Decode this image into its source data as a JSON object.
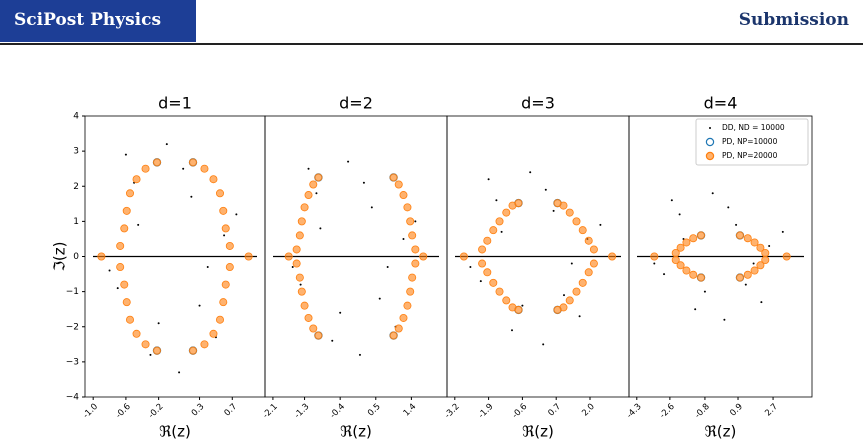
{
  "header": {
    "journal": "SciPost Physics",
    "tag": "Submission"
  },
  "chart_data": [
    {
      "type": "scatter",
      "title": "d=1",
      "x_label": "ℜ(z)",
      "y_label": "ℑ(z)",
      "xlim": [
        -1.1,
        1.1
      ],
      "ylim": [
        -4,
        4
      ],
      "xticks": [
        {
          "value": -1.0,
          "label": "-1.0"
        },
        -0.6,
        -0.2,
        0.3,
        0.7
      ],
      "yticks": [
        {
          "value": -4,
          "label": "−4"
        },
        {
          "value": -3,
          "label": "−3"
        },
        {
          "value": -2,
          "label": "−2"
        },
        {
          "value": -1,
          "label": "−1"
        },
        0,
        1,
        2,
        3,
        4
      ],
      "series": [
        {
          "color": "#000000",
          "x": [
            -0.5,
            0.3,
            -0.1,
            0.6,
            -0.7,
            0.2,
            -0.3,
            0.4,
            0.05,
            -0.45,
            0.75,
            -0.8,
            0.1,
            -0.2,
            0.5,
            -0.6
          ],
          "y": [
            2.1,
            -1.4,
            3.2,
            0.6,
            -0.9,
            1.7,
            -2.8,
            -0.3,
            -3.3,
            0.9,
            1.2,
            -0.4,
            2.5,
            -1.9,
            -2.3,
            2.9
          ]
        },
        {
          "color": "#1f77b4",
          "x": [
            0.22,
            -0.22,
            0.22,
            -0.22
          ],
          "y": [
            2.68,
            2.68,
            -2.68,
            -2.68
          ]
        },
        {
          "color": "#ff7f0e",
          "x": [
            -0.9,
            0.9,
            0.67,
            0.62,
            0.59,
            0.55,
            0.47,
            0.36,
            0.22,
            -0.67,
            -0.62,
            -0.59,
            -0.55,
            -0.47,
            -0.36,
            -0.22,
            0.67,
            0.62,
            0.59,
            0.55,
            0.47,
            0.36,
            0.22,
            -0.67,
            -0.62,
            -0.59,
            -0.55,
            -0.47,
            -0.36,
            -0.22
          ],
          "y": [
            0,
            0,
            0.3,
            0.8,
            1.3,
            1.8,
            2.2,
            2.5,
            2.68,
            0.3,
            0.8,
            1.3,
            1.8,
            2.2,
            2.5,
            2.68,
            -0.3,
            -0.8,
            -1.3,
            -1.8,
            -2.2,
            -2.5,
            -2.68,
            -0.3,
            -0.8,
            -1.3,
            -1.8,
            -2.2,
            -2.5,
            -2.68
          ]
        }
      ]
    },
    {
      "type": "scatter",
      "title": "d=2",
      "x_label": "ℜ(z)",
      "xlim": [
        -2.3,
        2.3
      ],
      "ylim": [
        -4,
        4
      ],
      "xticks": [
        -2.1,
        -1.3,
        -0.4,
        0.5,
        1.4
      ],
      "series": [
        {
          "color": "#000000",
          "x": [
            -1.0,
            0.6,
            -0.2,
            1.2,
            -1.4,
            0.4,
            -0.6,
            0.8,
            0.1,
            -0.9,
            1.5,
            -1.6,
            0.2,
            -0.4,
            1.0,
            -1.2
          ],
          "y": [
            1.8,
            -1.2,
            2.7,
            0.5,
            -0.8,
            1.4,
            -2.4,
            -0.3,
            -2.8,
            0.8,
            1.0,
            -0.3,
            2.1,
            -1.6,
            -2.0,
            2.5
          ]
        },
        {
          "color": "#1f77b4",
          "x": [
            0.95,
            -0.95,
            0.95,
            -0.95
          ],
          "y": [
            2.25,
            2.25,
            -2.25,
            -2.25
          ]
        },
        {
          "color": "#ff7f0e",
          "x": [
            -1.7,
            1.7,
            1.5,
            1.42,
            1.37,
            1.3,
            1.2,
            1.08,
            0.95,
            -1.5,
            -1.42,
            -1.37,
            -1.3,
            -1.2,
            -1.08,
            -0.95,
            1.5,
            1.42,
            1.37,
            1.3,
            1.2,
            1.08,
            0.95,
            -1.5,
            -1.42,
            -1.37,
            -1.3,
            -1.2,
            -1.08,
            -0.95
          ],
          "y": [
            0,
            0,
            0.2,
            0.6,
            1.0,
            1.4,
            1.75,
            2.05,
            2.25,
            0.2,
            0.6,
            1.0,
            1.4,
            1.75,
            2.05,
            2.25,
            -0.2,
            -0.6,
            -1.0,
            -1.4,
            -1.75,
            -2.05,
            -2.25,
            -0.2,
            -0.6,
            -1.0,
            -1.4,
            -1.75,
            -2.05,
            -2.25
          ]
        }
      ]
    },
    {
      "type": "scatter",
      "title": "d=3",
      "x_label": "ℜ(z)",
      "xlim": [
        -3.5,
        3.5
      ],
      "ylim": [
        -4,
        4
      ],
      "xticks": [
        -3.2,
        -1.9,
        -0.6,
        0.7,
        {
          "value": 2.0,
          "label": "2.0"
        }
      ],
      "series": [
        {
          "color": "#000000",
          "x": [
            -1.6,
            1.0,
            -0.3,
            1.9,
            -2.2,
            0.6,
            -1.0,
            1.3,
            0.2,
            -1.4,
            2.4,
            -2.6,
            0.3,
            -0.6,
            1.6,
            -1.9
          ],
          "y": [
            1.6,
            -1.1,
            2.4,
            0.5,
            -0.7,
            1.3,
            -2.1,
            -0.2,
            -2.5,
            0.7,
            0.9,
            -0.3,
            1.9,
            -1.4,
            -1.7,
            2.2
          ]
        },
        {
          "color": "#1f77b4",
          "x": [
            0.75,
            -0.75,
            0.75,
            -0.75
          ],
          "y": [
            1.52,
            1.52,
            -1.52,
            -1.52
          ]
        },
        {
          "color": "#ff7f0e",
          "x": [
            -2.85,
            2.85,
            2.15,
            1.95,
            1.72,
            1.48,
            1.22,
            0.98,
            0.75,
            -2.15,
            -1.95,
            -1.72,
            -1.48,
            -1.22,
            -0.98,
            -0.75,
            2.15,
            1.95,
            1.72,
            1.48,
            1.22,
            0.98,
            0.75,
            -2.15,
            -1.95,
            -1.72,
            -1.48,
            -1.22,
            -0.98,
            -0.75
          ],
          "y": [
            0,
            0,
            0.2,
            0.45,
            0.75,
            1.0,
            1.25,
            1.45,
            1.52,
            0.2,
            0.45,
            0.75,
            1.0,
            1.25,
            1.45,
            1.52,
            -0.2,
            -0.45,
            -0.75,
            -1.0,
            -1.25,
            -1.45,
            -1.52,
            -0.2,
            -0.45,
            -0.75,
            -1.0,
            -1.25,
            -1.45,
            -1.52
          ]
        }
      ]
    },
    {
      "type": "scatter",
      "title": "d=4",
      "x_label": "ℜ(z)",
      "xlim": [
        -4.7,
        4.7
      ],
      "ylim": [
        -4,
        4
      ],
      "xticks": [
        -4.3,
        -2.6,
        -0.8,
        0.9,
        2.7
      ],
      "legend": "upper right",
      "series": [
        {
          "name": "DD, ND = 10000",
          "color": "#000000",
          "x": [
            -2.1,
            1.3,
            -0.4,
            2.5,
            -2.9,
            0.8,
            -1.3,
            1.7,
            0.2,
            -1.9,
            3.2,
            -3.4,
            0.4,
            -0.8,
            2.1,
            -2.5
          ],
          "y": [
            1.2,
            -0.8,
            1.8,
            0.3,
            -0.5,
            0.9,
            -1.5,
            -0.2,
            -1.8,
            0.5,
            0.7,
            -0.2,
            1.4,
            -1.0,
            -1.3,
            1.6
          ]
        },
        {
          "name": "PD, NP=10000",
          "color": "#1f77b4",
          "x": [
            1.0,
            -1.0,
            1.0,
            -1.0
          ],
          "y": [
            0.6,
            0.6,
            -0.6,
            -0.6
          ]
        },
        {
          "name": "PD, NP=20000",
          "color": "#ff7f0e",
          "x": [
            -3.4,
            3.4,
            2.3,
            2.05,
            1.75,
            1.4,
            1.0,
            -2.3,
            -2.05,
            -1.75,
            -1.4,
            -1.0,
            2.3,
            2.05,
            1.75,
            1.4,
            1.0,
            -2.3,
            -2.05,
            -1.75,
            -1.4,
            -1.0
          ],
          "y": [
            0,
            0,
            0.1,
            0.25,
            0.4,
            0.52,
            0.6,
            0.1,
            0.25,
            0.4,
            0.52,
            0.6,
            -0.1,
            -0.25,
            -0.4,
            -0.52,
            -0.6,
            -0.1,
            -0.25,
            -0.4,
            -0.52,
            -0.6
          ]
        }
      ]
    }
  ]
}
